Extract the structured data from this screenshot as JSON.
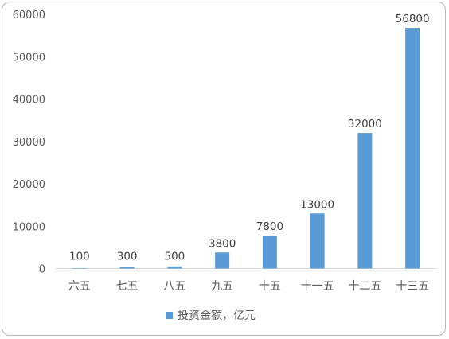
{
  "chart_data": {
    "type": "bar",
    "categories": [
      "六五",
      "七五",
      "八五",
      "九五",
      "十五",
      "十一五",
      "十二五",
      "十三五"
    ],
    "series": [
      {
        "name": "投资金额，亿元",
        "values": [
          100,
          300,
          500,
          3800,
          7800,
          13000,
          32000,
          56800
        ]
      }
    ],
    "data_labels": [
      "100",
      "300",
      "500",
      "3800",
      "7800",
      "13000",
      "32000",
      "56800"
    ],
    "yticks": [
      "0",
      "10000",
      "20000",
      "30000",
      "40000",
      "50000",
      "60000"
    ],
    "ylim": [
      0,
      60000
    ],
    "grid": false,
    "legend_position": "bottom",
    "bar_color": "#5b9bd5"
  }
}
